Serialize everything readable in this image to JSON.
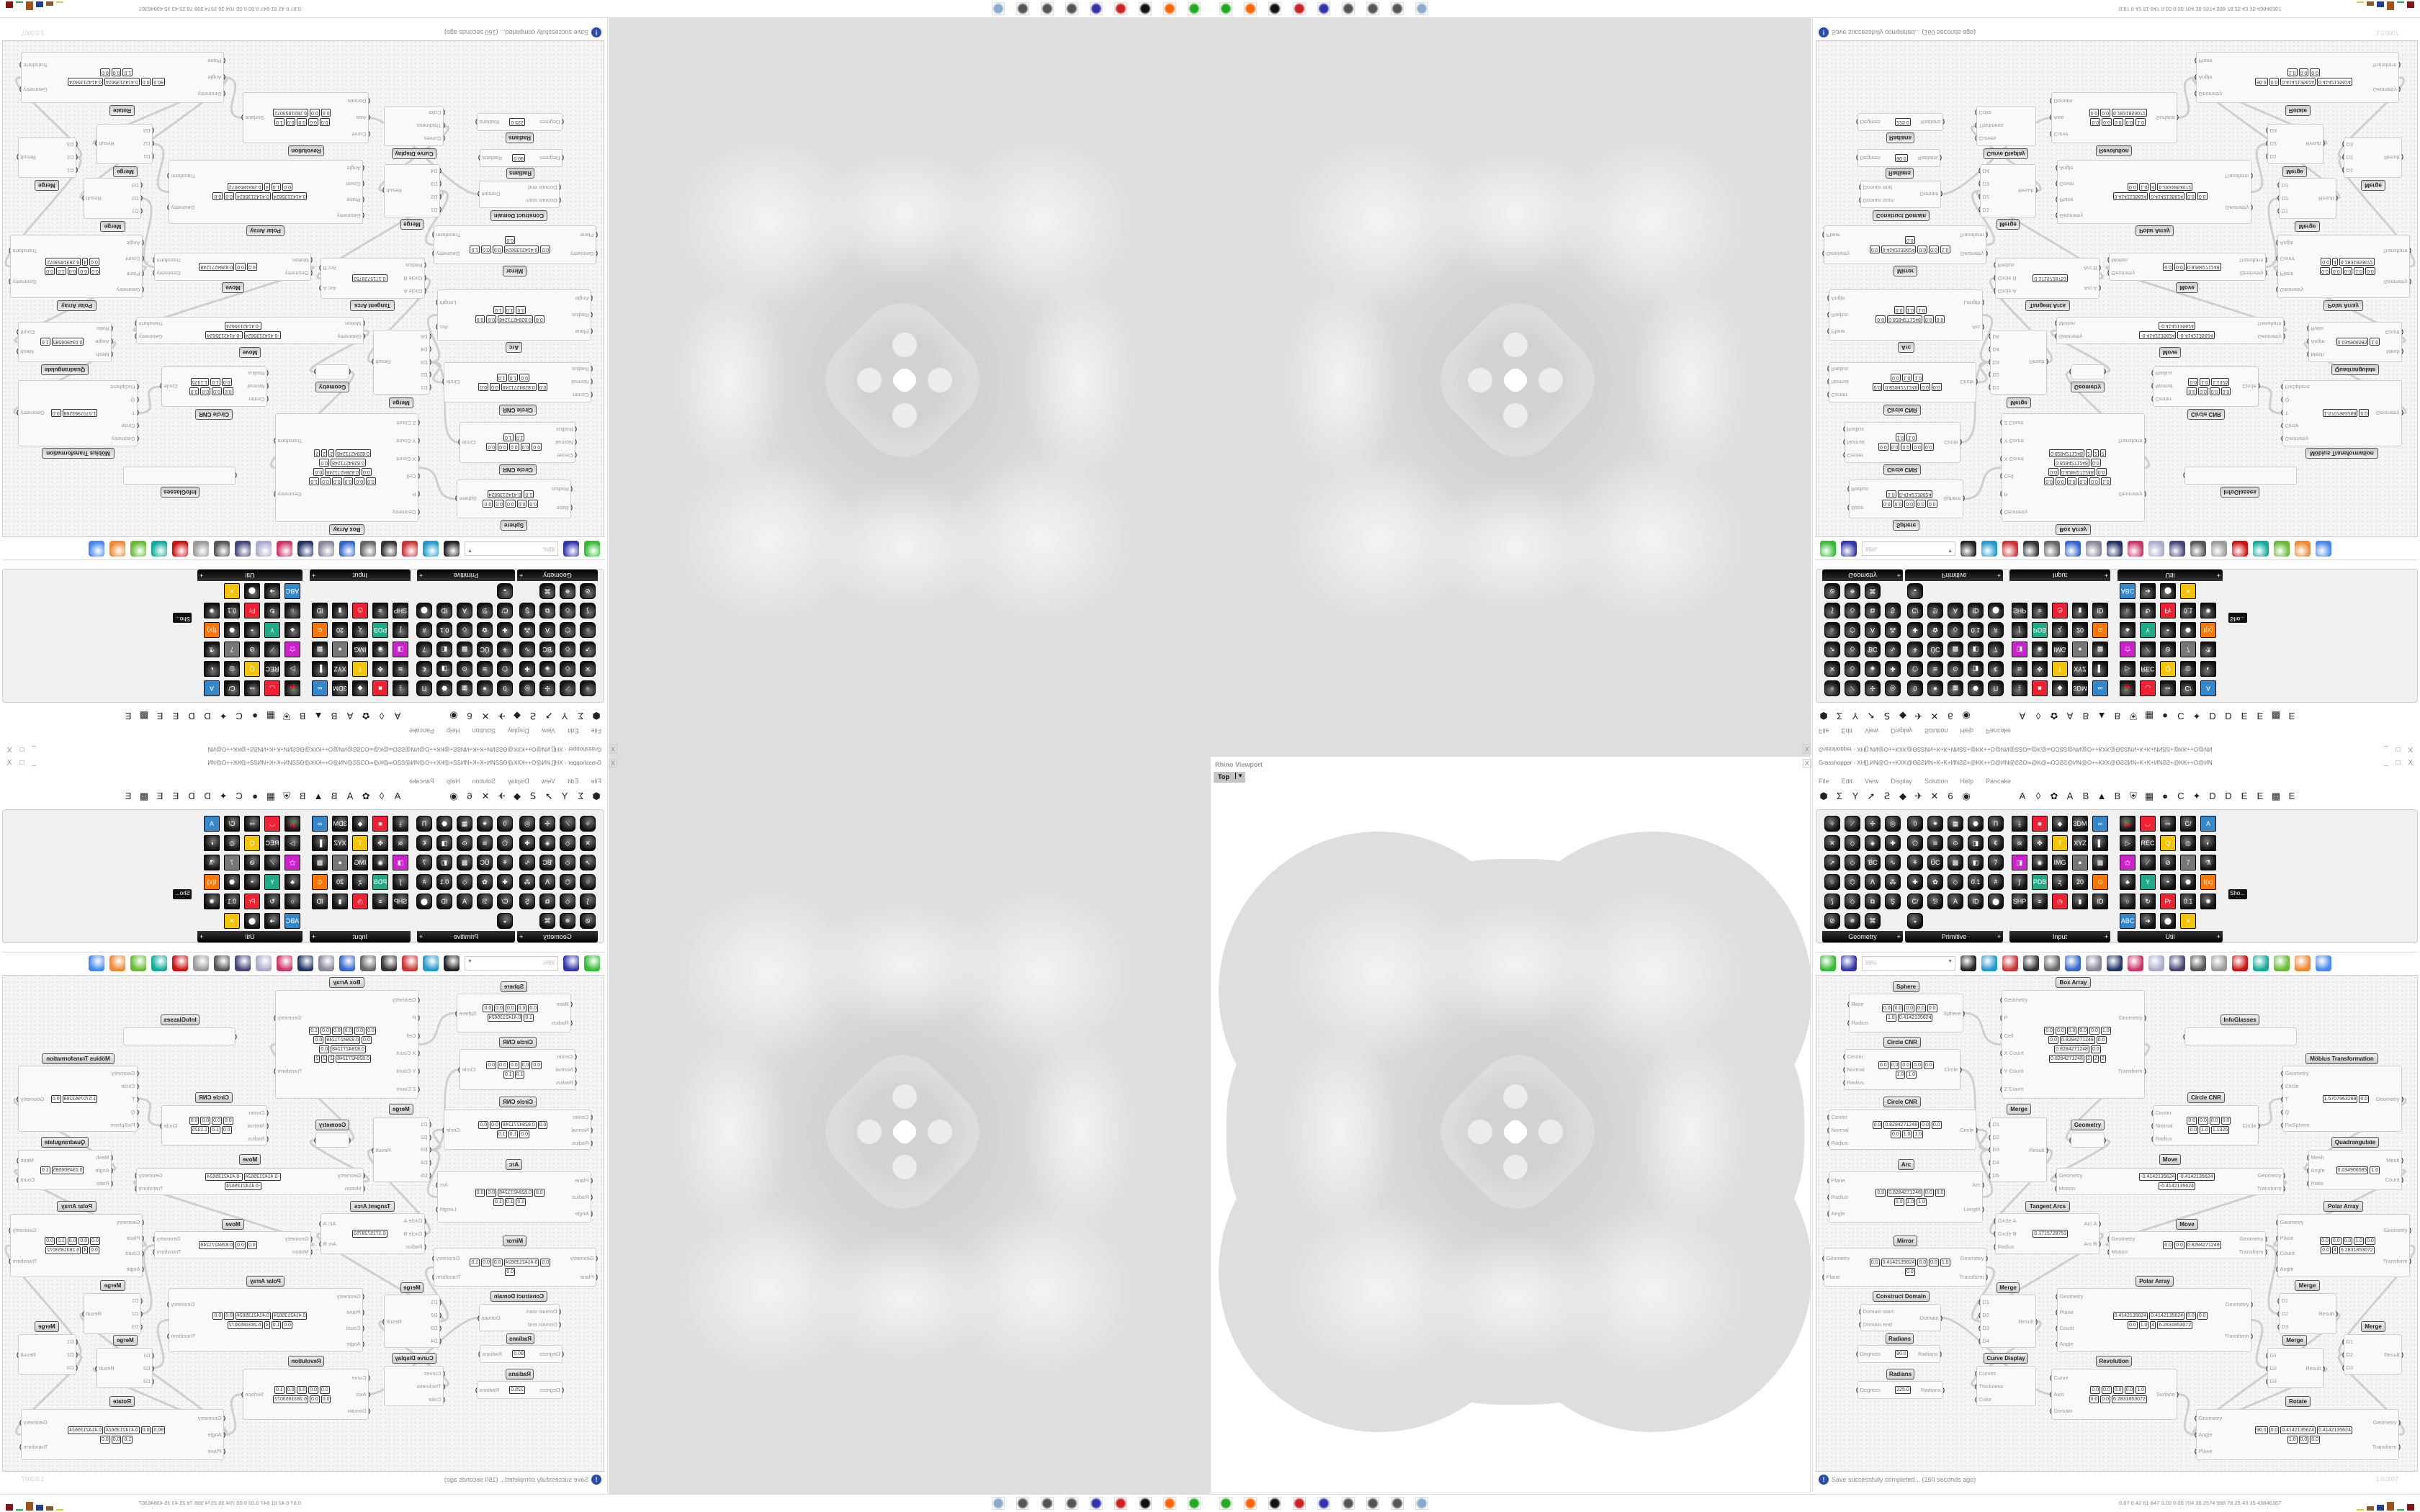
{
  "rhino": {
    "label": "Rhino Viewport",
    "view": "Top"
  },
  "grasshopper": {
    "title": "Grasshopper - XH[].ИN@O++KXK@ƟƧƧИN+K+K+ИNƧƧ+@KK++O@ИN@ƧƧO∞@K@∞OƆƧƧ@ИN@O++KXK@ƟƧƧИN+K+K+ИNƧƧ+@KK++O@ИN",
    "close": "X",
    "window_buttons": "_ □ X",
    "menu": [
      "File",
      "Edit",
      "View",
      "Display",
      "Solution",
      "Help",
      "Pancake"
    ],
    "tab_icons": [
      "⬢",
      "Σ",
      "Y",
      "➚",
      "Ꙅ",
      "◆",
      "✈",
      "✕",
      "6",
      "◉",
      "A",
      "◊",
      "✿",
      "A",
      "B",
      "▲",
      "B",
      "⛨",
      "▦",
      "●",
      "C",
      "✦",
      "D",
      "D",
      "E",
      "E",
      "▩",
      "E"
    ],
    "panels": [
      {
        "label": "Geometry",
        "icons": [
          "✧",
          "⟋",
          "✢",
          "◎",
          "✕",
          "◇",
          "◈",
          "✚",
          "➚",
          "◇",
          "ƁC",
          "∿",
          "○",
          "⬡",
          "ⴷ",
          "⁂",
          "⟆",
          "◇",
          "⧉",
          "Ş",
          "⊘",
          "✵",
          "⌘"
        ]
      },
      {
        "label": "Primitive",
        "icons": [
          "0",
          "✷",
          "▦",
          "⬣",
          "Π",
          "⬠",
          "≋",
          "⊙",
          "◨",
          "€",
          "⚘",
          "ÜC",
          "▩",
          "◧",
          "7",
          "✚",
          "✿",
          "◇",
          "0.1",
          "#",
          "C/",
          "ℬ",
          "A",
          "ID",
          "⬤",
          "◒"
        ]
      },
      {
        "label": "Input",
        "icons": [
          "⤓",
          "■",
          "◆",
          "3DM",
          "∞",
          "≋",
          "✤",
          "T",
          "XYZ",
          "▌",
          "◨",
          "◉",
          "IMG",
          "●",
          "▩",
          "∫",
          "PDB",
          "ʐ",
          "20",
          "⊙",
          "SHP",
          "≡",
          "◷",
          "▮",
          "ID"
        ]
      },
      {
        "label": "Util",
        "icons": [
          "🍒",
          "◡",
          "⇨",
          "C/",
          "A",
          "▷",
          "REC",
          "Q",
          "◎",
          "◐",
          "⚝",
          "⟋",
          "⊘",
          "7",
          "⚗",
          "♣",
          "Y",
          "◓",
          "⬣",
          "f(x)",
          "○",
          "↻",
          "Pr",
          "0.1",
          "✺",
          "ABC",
          "➜",
          "⬤",
          "✕"
        ]
      }
    ],
    "side_panel_label": "Sho...",
    "zoom_level": "88%",
    "toolbar_icons": [
      "new-file-icon",
      "save-icon",
      "zoom-extents-icon",
      "preview-eye-icon",
      "sketch-pen-icon",
      "cluster-icon",
      "email-icon",
      "gha-icon",
      "canvas-image-icon",
      "search-icon",
      "package-icon",
      "balloon-icon",
      "wire-cross-icon",
      "shade-icon",
      "wireframe-icon",
      "red-shape-icon",
      "teal-icon",
      "green-icon",
      "sphere-orange-icon",
      "blue-sphere-icon"
    ],
    "status": "Save successfully completed... (160 seconds ago)",
    "version": "1.0.0007"
  },
  "canvas": {
    "nodes": [
      {
        "title": "Sphere",
        "in": [
          "Base",
          "Radius"
        ],
        "out": [
          "Sphere"
        ],
        "vals": [
          "0.0",
          "0.0",
          "0.0",
          "0.0",
          "0.0",
          "1.0",
          "0.4142135624"
        ]
      },
      {
        "title": "Box Array",
        "in": [
          "Geometry",
          "P",
          "Cell",
          "X Count",
          "Y Count",
          "Z Count"
        ],
        "out": [
          "Geometry",
          "Transform"
        ],
        "vals": [
          "0.0",
          "0.0",
          "0.0",
          "0.0",
          "0.0",
          "1.0",
          "0.0",
          "0.8284271248",
          "0.0",
          "0.8284271248",
          "0.0",
          "0.8284271248",
          "2",
          "2",
          "2"
        ]
      },
      {
        "title": "Circle CNR",
        "in": [
          "Center",
          "Normal",
          "Radius"
        ],
        "out": [
          "Circle"
        ],
        "vals": [
          "0.0",
          "0.0",
          "0.0",
          "0.0",
          "0.0",
          "1.0",
          "1.0"
        ]
      },
      {
        "title": "Circle CNR",
        "in": [
          "Center",
          "Normal",
          "Radius"
        ],
        "out": [
          "Circle"
        ],
        "vals": [
          "0.0",
          "0.8284271248",
          "0.0",
          "0.0",
          "0.0",
          "1.0",
          "1.0"
        ]
      },
      {
        "title": "Arc",
        "in": [
          "Plane",
          "Radius",
          "Angle"
        ],
        "out": [
          "Arc",
          "Length"
        ],
        "vals": [
          "0.0",
          "0.8284271248",
          "0.0",
          "0.0",
          "0.0",
          "1.0",
          "1.0"
        ]
      },
      {
        "title": "Merge",
        "in": [
          "D1",
          "D2",
          "D3",
          "D4",
          "D5"
        ],
        "out": [
          "Result"
        ],
        "vals": []
      },
      {
        "title": "Geometry",
        "in": [
          ""
        ],
        "out": [
          ""
        ],
        "vals": []
      },
      {
        "title": "InfoGlasses",
        "in": [
          ""
        ],
        "out": [],
        "vals": []
      },
      {
        "title": "Circle CNR",
        "in": [
          "Center",
          "Normal",
          "Radius"
        ],
        "out": [
          "Circle"
        ],
        "vals": [
          "0.0",
          "0.0",
          "0.0",
          "0.0",
          "0.0",
          "1.0",
          "1.1325"
        ]
      },
      {
        "title": "Möbius Transformation",
        "in": [
          "Geometry",
          "Circle",
          "T",
          "Q",
          "FixSphere"
        ],
        "out": [
          "Geometry"
        ],
        "vals": [
          "1.5707963268",
          "0.0"
        ]
      },
      {
        "title": "Quadrangulate",
        "in": [
          "Mesh",
          "Angle",
          "Ratio"
        ],
        "out": [
          "Mesh",
          "Count"
        ],
        "vals": [
          "0.034906585",
          "1.0"
        ]
      },
      {
        "title": "Move",
        "in": [
          "Geometry",
          "Motion"
        ],
        "out": [
          "Geometry",
          "Transform"
        ],
        "vals": [
          "-0.4142135624",
          "-0.4142135624",
          "-0.4142135624"
        ]
      },
      {
        "title": "Tangent Arcs",
        "in": [
          "Circle A",
          "Circle B",
          "Radius"
        ],
        "out": [
          "Arc A",
          "Arc B"
        ],
        "vals": [
          "0.1715728753"
        ]
      },
      {
        "title": "Polar Array",
        "in": [
          "Geometry",
          "Plane",
          "Count",
          "Angle"
        ],
        "out": [
          "Geometry",
          "Transform"
        ],
        "vals": [
          "0.0",
          "0.0",
          "0.0",
          "1.0",
          "0.0",
          "0.0",
          "4",
          "6.2831853072"
        ]
      },
      {
        "title": "Move",
        "in": [
          "Geometry",
          "Motion"
        ],
        "out": [
          "Geometry",
          "Transform"
        ],
        "vals": [
          "0.0",
          "0.0",
          "0.8284271248"
        ]
      },
      {
        "title": "Mirror",
        "in": [
          "Geometry",
          "Plane"
        ],
        "out": [
          "Geometry",
          "Transform"
        ],
        "vals": [
          "0.0",
          "0.4142135624",
          "0.0",
          "0.0",
          "1.0",
          "0.0"
        ]
      },
      {
        "title": "Construct Domain",
        "in": [
          "Domain start",
          "Domain end"
        ],
        "out": [
          "Domain"
        ],
        "vals": []
      },
      {
        "title": "Radians",
        "in": [
          "Degrees"
        ],
        "out": [
          "Radians"
        ],
        "vals": [
          "90.0"
        ]
      },
      {
        "title": "Radians",
        "in": [
          "Degrees"
        ],
        "out": [
          "Radians"
        ],
        "vals": [
          "225.0"
        ]
      },
      {
        "title": "Merge",
        "in": [
          "D1",
          "D2",
          "D3",
          "D4"
        ],
        "out": [
          "Result"
        ],
        "vals": []
      },
      {
        "title": "Curve Display",
        "in": [
          "Curves",
          "Thickness",
          "Color"
        ],
        "out": [],
        "vals": []
      },
      {
        "title": "Polar Array",
        "in": [
          "Geometry",
          "Plane",
          "Count",
          "Angle"
        ],
        "out": [
          "Geometry",
          "Transform"
        ],
        "vals": [
          "0.4142135624",
          "0.4142135624",
          "0.0",
          "0.0",
          "0.0",
          "1.0",
          "4",
          "6.2831853072"
        ]
      },
      {
        "title": "Revolution",
        "in": [
          "Curve",
          "Axis",
          "Domain"
        ],
        "out": [
          "Surface"
        ],
        "vals": [
          "0.0",
          "0.0",
          "0.0",
          "0.0",
          "1.0",
          "0.0",
          "0.0",
          "6.2831853072"
        ]
      },
      {
        "title": "Merge",
        "in": [
          "D1",
          "D2",
          "D3"
        ],
        "out": [
          "Result"
        ],
        "vals": []
      },
      {
        "title": "Merge",
        "in": [
          "D1",
          "D2",
          "D3"
        ],
        "out": [
          "Result"
        ],
        "vals": []
      },
      {
        "title": "Merge",
        "in": [
          "D1",
          "D2",
          "D3"
        ],
        "out": [
          "Result"
        ],
        "vals": []
      },
      {
        "title": "Rotate",
        "in": [
          "Geometry",
          "Angle",
          "Plane"
        ],
        "out": [
          "Geometry",
          "Transform"
        ],
        "vals": [
          "90.0",
          "0.0",
          "0.4142135624",
          "0.4142135624",
          "1.0",
          "0.0",
          "0.0"
        ]
      }
    ]
  },
  "taskbar": {
    "apps": [
      "terminal-icon",
      "firefox-icon",
      "inkscape-icon",
      "settings-icon",
      "floppy-64-icon",
      "app-icon",
      "app-icon",
      "app-icon",
      "calculator-icon"
    ],
    "tray_text": "0.67 0.42  61  847  0.00  0.00  704  36  2574  998  78  25  43  35  43846367",
    "bar_colors": [
      "#d9c94a",
      "#8b5a2b",
      "#1f3f8f",
      "#a0521b",
      "#2fa84f",
      "#8b1010"
    ]
  }
}
